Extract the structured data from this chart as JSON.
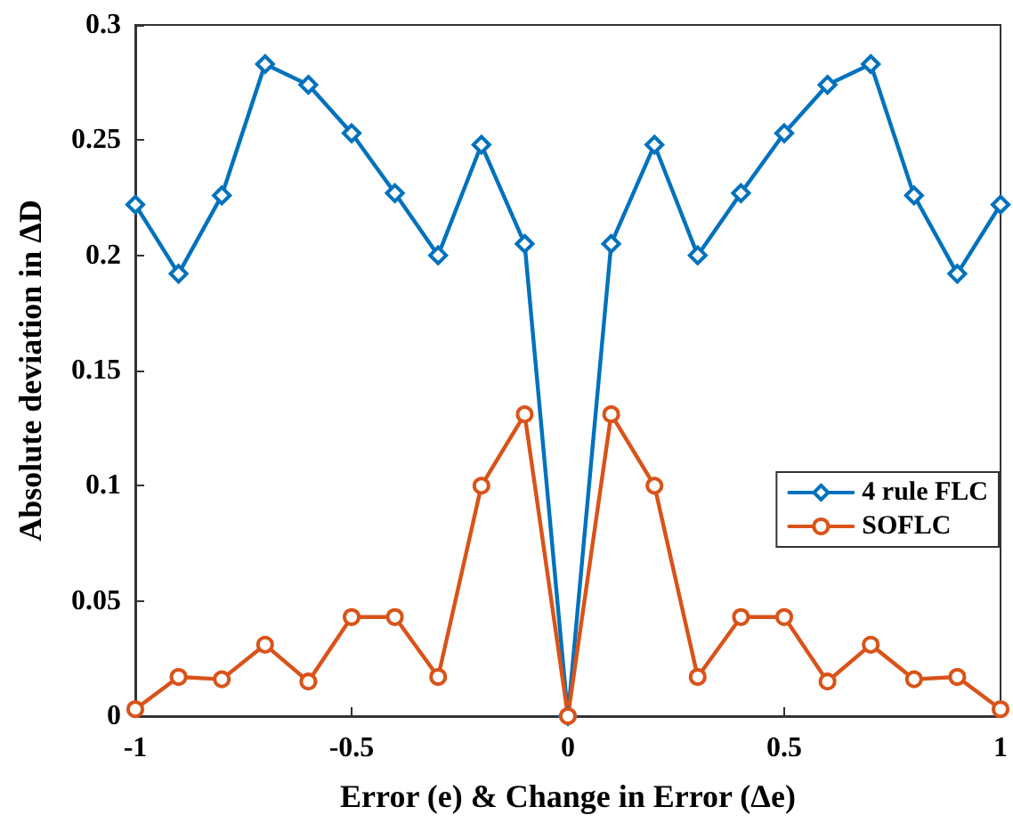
{
  "chart_data": {
    "type": "line",
    "xlabel": "Error (e) & Change in Error (Δe)",
    "ylabel": "Absolute deviation in ΔD",
    "x": [
      -1,
      -0.9,
      -0.8,
      -0.7,
      -0.6,
      -0.5,
      -0.4,
      -0.3,
      -0.2,
      -0.1,
      0,
      0.1,
      0.2,
      0.3,
      0.4,
      0.5,
      0.6,
      0.7,
      0.8,
      0.9,
      1
    ],
    "series": [
      {
        "name": "4 rule FLC",
        "color": "#0072bd",
        "marker": "diamond",
        "values": [
          0.222,
          0.192,
          0.226,
          0.283,
          0.274,
          0.253,
          0.227,
          0.2,
          0.248,
          0.205,
          0,
          0.205,
          0.248,
          0.2,
          0.227,
          0.253,
          0.274,
          0.283,
          0.226,
          0.192,
          0.222
        ]
      },
      {
        "name": "SOFLC",
        "color": "#d95319",
        "marker": "circle",
        "values": [
          0.003,
          0.017,
          0.016,
          0.031,
          0.015,
          0.043,
          0.043,
          0.017,
          0.1,
          0.131,
          0,
          0.131,
          0.1,
          0.017,
          0.043,
          0.043,
          0.015,
          0.031,
          0.016,
          0.017,
          0.003
        ]
      }
    ],
    "xlim": [
      -1,
      1
    ],
    "xticks": [
      -1,
      -0.5,
      0,
      0.5,
      1
    ],
    "ylim": [
      0,
      0.3
    ],
    "yticks": [
      0,
      0.05,
      0.1,
      0.15,
      0.2,
      0.25,
      0.3
    ],
    "grid": false,
    "legend": "right",
    "line_style": "solid"
  }
}
